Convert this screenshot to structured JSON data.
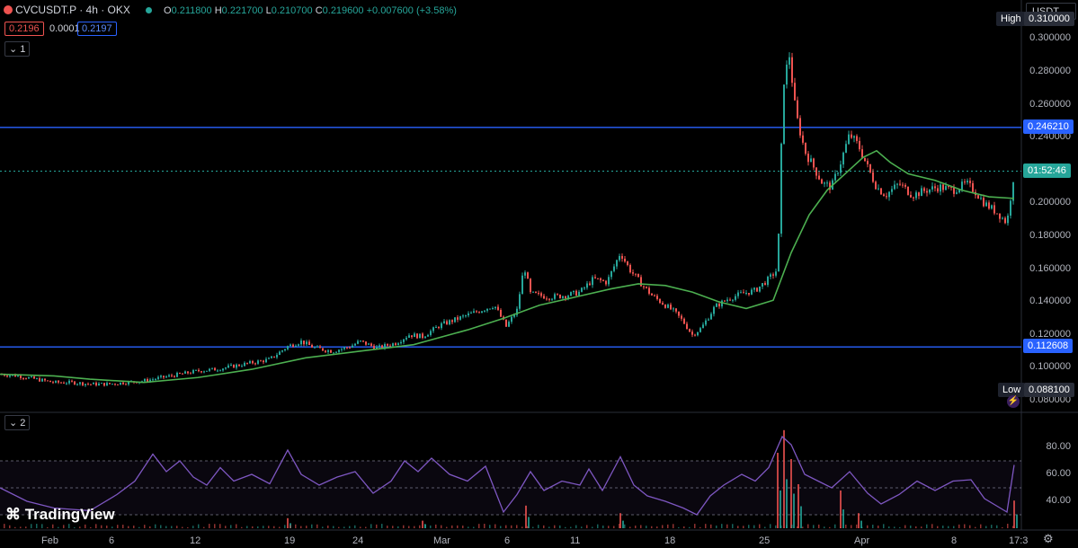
{
  "header": {
    "symbol": "CVCUSDT.P · 4h · OKX",
    "ohlc_o_label": "O",
    "ohlc_o": "0.211800",
    "ohlc_h_label": "H",
    "ohlc_h": "0.221700",
    "ohlc_l_label": "L",
    "ohlc_l": "0.210700",
    "ohlc_c_label": "C",
    "ohlc_c": "0.219600",
    "change": "+0.007600 (+3.58%)",
    "bid": "0.2196",
    "spread": "0.0001",
    "ask": "0.2197",
    "pane1_label": "1",
    "pane2_label": "2",
    "currency": "USDT",
    "logo": "TradingView",
    "time_clip": "17:3"
  },
  "colors": {
    "up": "#26a69a",
    "down": "#ef5350",
    "ma": "#4caf50",
    "rsi": "#7e57c2",
    "hline": "#2962ff",
    "grid": "#1c1f26"
  },
  "chart_data": {
    "type": "candlestick",
    "price_axis": {
      "ylim": [
        0.075,
        0.315
      ],
      "ticks": [
        "0.300000",
        "0.280000",
        "0.260000",
        "0.240000",
        "0.200000",
        "0.180000",
        "0.160000",
        "0.140000",
        "0.120000",
        "0.100000",
        "0.080000"
      ]
    },
    "x_ticks": [
      "Feb",
      "6",
      "12",
      "19",
      "24",
      "Mar",
      "6",
      "11",
      "18",
      "25",
      "Apr",
      "8"
    ],
    "horizontal_lines": [
      {
        "value": 0.24621,
        "label": "0.246210"
      },
      {
        "value": 0.112608,
        "label": "0.112608"
      }
    ],
    "current_price": {
      "value": 0.2196,
      "countdown": "01:52:46"
    },
    "high_label": {
      "text": "High",
      "value": "0.310000"
    },
    "low_label": {
      "text": "Low",
      "value": "0.088100"
    },
    "price_path": [
      [
        0,
        0.096
      ],
      [
        20,
        0.095
      ],
      [
        40,
        0.093
      ],
      [
        60,
        0.091
      ],
      [
        80,
        0.091
      ],
      [
        100,
        0.09
      ],
      [
        120,
        0.09
      ],
      [
        140,
        0.091
      ],
      [
        160,
        0.092
      ],
      [
        180,
        0.094
      ],
      [
        200,
        0.096
      ],
      [
        220,
        0.098
      ],
      [
        240,
        0.099
      ],
      [
        260,
        0.101
      ],
      [
        280,
        0.103
      ],
      [
        300,
        0.105
      ],
      [
        320,
        0.113
      ],
      [
        335,
        0.116
      ],
      [
        350,
        0.112
      ],
      [
        370,
        0.11
      ],
      [
        390,
        0.113
      ],
      [
        400,
        0.116
      ],
      [
        420,
        0.112
      ],
      [
        440,
        0.115
      ],
      [
        455,
        0.12
      ],
      [
        470,
        0.119
      ],
      [
        490,
        0.126
      ],
      [
        510,
        0.13
      ],
      [
        530,
        0.134
      ],
      [
        550,
        0.138
      ],
      [
        563,
        0.125
      ],
      [
        575,
        0.135
      ],
      [
        583,
        0.162
      ],
      [
        590,
        0.145
      ],
      [
        610,
        0.143
      ],
      [
        630,
        0.144
      ],
      [
        645,
        0.146
      ],
      [
        660,
        0.154
      ],
      [
        675,
        0.152
      ],
      [
        690,
        0.17
      ],
      [
        700,
        0.16
      ],
      [
        715,
        0.15
      ],
      [
        725,
        0.144
      ],
      [
        740,
        0.138
      ],
      [
        750,
        0.134
      ],
      [
        760,
        0.128
      ],
      [
        770,
        0.12
      ],
      [
        780,
        0.124
      ],
      [
        795,
        0.137
      ],
      [
        810,
        0.142
      ],
      [
        825,
        0.145
      ],
      [
        840,
        0.147
      ],
      [
        855,
        0.154
      ],
      [
        865,
        0.16
      ],
      [
        868,
        0.22
      ],
      [
        872,
        0.275
      ],
      [
        878,
        0.29
      ],
      [
        885,
        0.255
      ],
      [
        895,
        0.232
      ],
      [
        905,
        0.222
      ],
      [
        915,
        0.212
      ],
      [
        925,
        0.21
      ],
      [
        935,
        0.225
      ],
      [
        945,
        0.242
      ],
      [
        955,
        0.235
      ],
      [
        965,
        0.222
      ],
      [
        975,
        0.21
      ],
      [
        985,
        0.205
      ],
      [
        1000,
        0.212
      ],
      [
        1015,
        0.205
      ],
      [
        1030,
        0.208
      ],
      [
        1045,
        0.21
      ],
      [
        1060,
        0.208
      ],
      [
        1075,
        0.212
      ],
      [
        1085,
        0.207
      ],
      [
        1095,
        0.2
      ],
      [
        1110,
        0.194
      ],
      [
        1120,
        0.188
      ],
      [
        1128,
        0.219
      ]
    ],
    "ma_path": [
      [
        0,
        0.096
      ],
      [
        60,
        0.095
      ],
      [
        100,
        0.093
      ],
      [
        160,
        0.091
      ],
      [
        220,
        0.094
      ],
      [
        280,
        0.099
      ],
      [
        340,
        0.106
      ],
      [
        400,
        0.11
      ],
      [
        460,
        0.114
      ],
      [
        520,
        0.123
      ],
      [
        560,
        0.13
      ],
      [
        600,
        0.138
      ],
      [
        640,
        0.143
      ],
      [
        680,
        0.148
      ],
      [
        710,
        0.151
      ],
      [
        740,
        0.15
      ],
      [
        770,
        0.146
      ],
      [
        800,
        0.14
      ],
      [
        830,
        0.136
      ],
      [
        860,
        0.141
      ],
      [
        880,
        0.17
      ],
      [
        900,
        0.193
      ],
      [
        920,
        0.208
      ],
      [
        940,
        0.218
      ],
      [
        960,
        0.228
      ],
      [
        975,
        0.232
      ],
      [
        990,
        0.225
      ],
      [
        1010,
        0.218
      ],
      [
        1040,
        0.214
      ],
      [
        1070,
        0.208
      ],
      [
        1100,
        0.204
      ],
      [
        1128,
        0.203
      ]
    ],
    "rsi": {
      "ylim": [
        20,
        92
      ],
      "ticks": [
        "80.00",
        "60.00",
        "40.00"
      ],
      "bands": [
        70,
        50,
        30
      ],
      "path": [
        [
          0,
          50
        ],
        [
          30,
          40
        ],
        [
          60,
          35
        ],
        [
          100,
          33
        ],
        [
          130,
          45
        ],
        [
          150,
          55
        ],
        [
          170,
          75
        ],
        [
          185,
          62
        ],
        [
          200,
          70
        ],
        [
          215,
          58
        ],
        [
          230,
          52
        ],
        [
          245,
          65
        ],
        [
          260,
          55
        ],
        [
          280,
          60
        ],
        [
          300,
          53
        ],
        [
          320,
          78
        ],
        [
          335,
          60
        ],
        [
          355,
          52
        ],
        [
          375,
          58
        ],
        [
          395,
          62
        ],
        [
          415,
          46
        ],
        [
          435,
          55
        ],
        [
          450,
          70
        ],
        [
          465,
          62
        ],
        [
          480,
          72
        ],
        [
          500,
          60
        ],
        [
          520,
          55
        ],
        [
          540,
          66
        ],
        [
          560,
          32
        ],
        [
          575,
          45
        ],
        [
          590,
          62
        ],
        [
          605,
          48
        ],
        [
          625,
          55
        ],
        [
          645,
          52
        ],
        [
          655,
          64
        ],
        [
          670,
          48
        ],
        [
          690,
          73
        ],
        [
          705,
          52
        ],
        [
          720,
          44
        ],
        [
          740,
          40
        ],
        [
          760,
          35
        ],
        [
          775,
          30
        ],
        [
          790,
          44
        ],
        [
          805,
          52
        ],
        [
          825,
          60
        ],
        [
          840,
          55
        ],
        [
          855,
          65
        ],
        [
          870,
          88
        ],
        [
          880,
          82
        ],
        [
          895,
          60
        ],
        [
          910,
          55
        ],
        [
          925,
          50
        ],
        [
          945,
          62
        ],
        [
          965,
          46
        ],
        [
          980,
          38
        ],
        [
          1000,
          45
        ],
        [
          1020,
          55
        ],
        [
          1040,
          48
        ],
        [
          1060,
          55
        ],
        [
          1080,
          56
        ],
        [
          1095,
          42
        ],
        [
          1110,
          36
        ],
        [
          1120,
          32
        ],
        [
          1128,
          67
        ]
      ]
    },
    "volume_spikes": [
      [
        320,
        8
      ],
      [
        470,
        6
      ],
      [
        585,
        18
      ],
      [
        690,
        12
      ],
      [
        865,
        60
      ],
      [
        872,
        78
      ],
      [
        880,
        55
      ],
      [
        888,
        35
      ],
      [
        935,
        30
      ],
      [
        955,
        12
      ],
      [
        1128,
        22
      ]
    ]
  }
}
